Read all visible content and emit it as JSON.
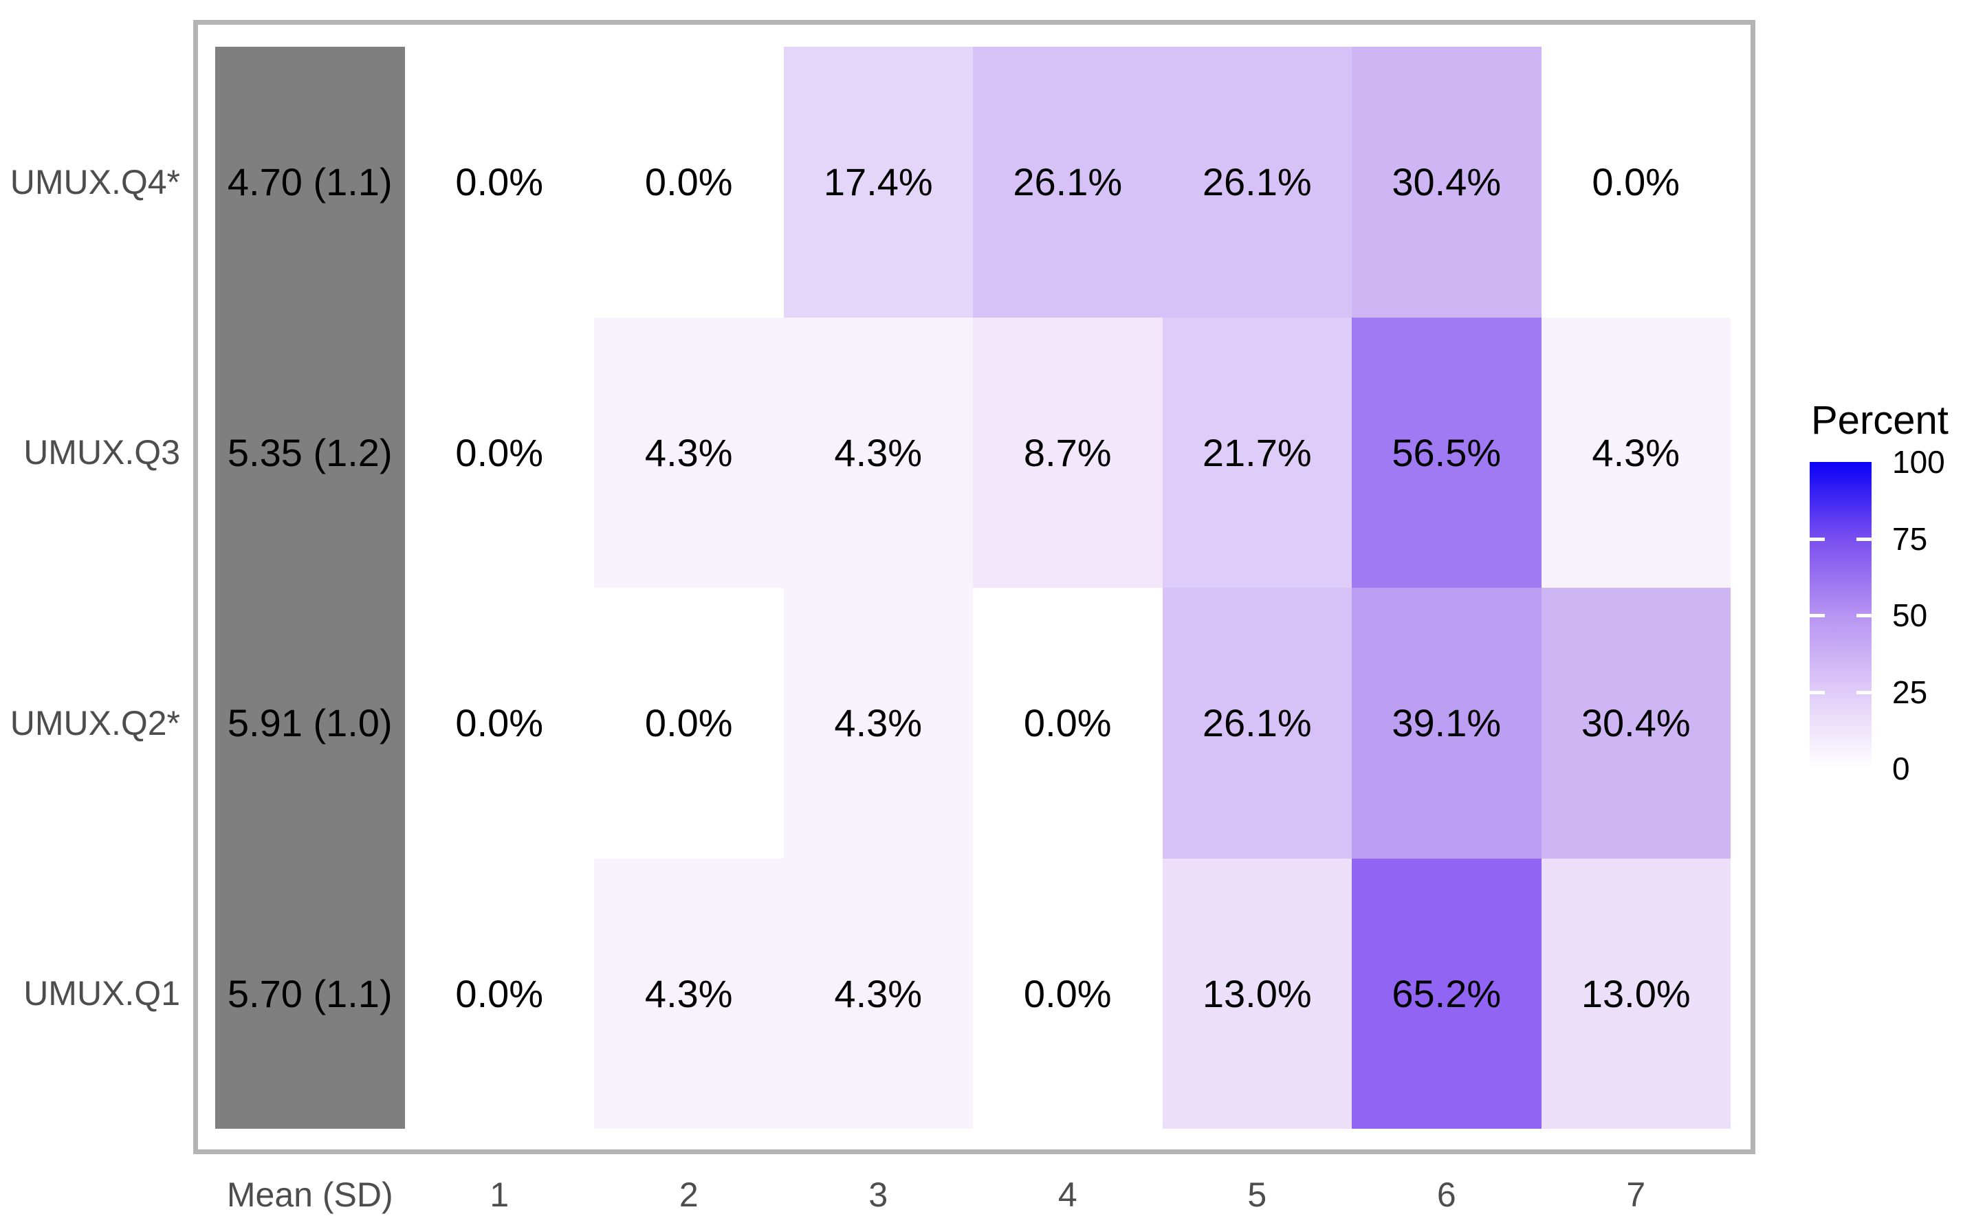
{
  "figure": {
    "background": "#ffffff",
    "panel_border_color": "#b4b4b4",
    "axis_text_color": "#4d4d4d",
    "cell_text_color": "#000000"
  },
  "chart_data": {
    "type": "heatmap",
    "description": "Distribution of UMUX item responses (percent of respondents per rating 1-7) with mean and standard deviation per item",
    "columns": [
      "Mean (SD)",
      "1",
      "2",
      "3",
      "4",
      "5",
      "6",
      "7"
    ],
    "rows": [
      {
        "label": "UMUX.Q4*",
        "mean_sd": "4.70 (1.1)",
        "values": [
          0.0,
          0.0,
          17.4,
          26.1,
          26.1,
          30.4,
          0.0
        ]
      },
      {
        "label": "UMUX.Q3",
        "mean_sd": "5.35 (1.2)",
        "values": [
          0.0,
          4.3,
          4.3,
          8.7,
          21.7,
          56.5,
          4.3
        ]
      },
      {
        "label": "UMUX.Q2*",
        "mean_sd": "5.91 (1.0)",
        "values": [
          0.0,
          0.0,
          4.3,
          0.0,
          26.1,
          39.1,
          30.4
        ]
      },
      {
        "label": "UMUX.Q1",
        "mean_sd": "5.70 (1.1)",
        "values": [
          0.0,
          4.3,
          4.3,
          0.0,
          13.0,
          65.2,
          13.0
        ]
      }
    ],
    "mean_column_color": "#7f7f7f",
    "color_scale": {
      "0.0": "#ffffff",
      "4.3": "#f8f2fd",
      "8.7": "#f2e7fb",
      "13.0": "#ebdffa",
      "17.4": "#e4d6f8",
      "21.7": "#decdf8",
      "26.1": "#d6c2f6",
      "30.4": "#ceb6f4",
      "39.1": "#bc9ef3",
      "56.5": "#a07af2",
      "65.2": "#9164f3"
    },
    "legend": {
      "title": "Percent",
      "ticks": [
        100,
        75,
        50,
        25,
        0
      ],
      "range": [
        0,
        100
      ],
      "position": "right",
      "gradient_stops": [
        {
          "value": 0,
          "color": "#ffffff"
        },
        {
          "value": 25,
          "color": "#e0ccf8"
        },
        {
          "value": 50,
          "color": "#b794f2"
        },
        {
          "value": 75,
          "color": "#7a4ff0"
        },
        {
          "value": 100,
          "color": "#0b01f6"
        }
      ]
    },
    "xlabel": "",
    "ylabel": "",
    "title": ""
  }
}
